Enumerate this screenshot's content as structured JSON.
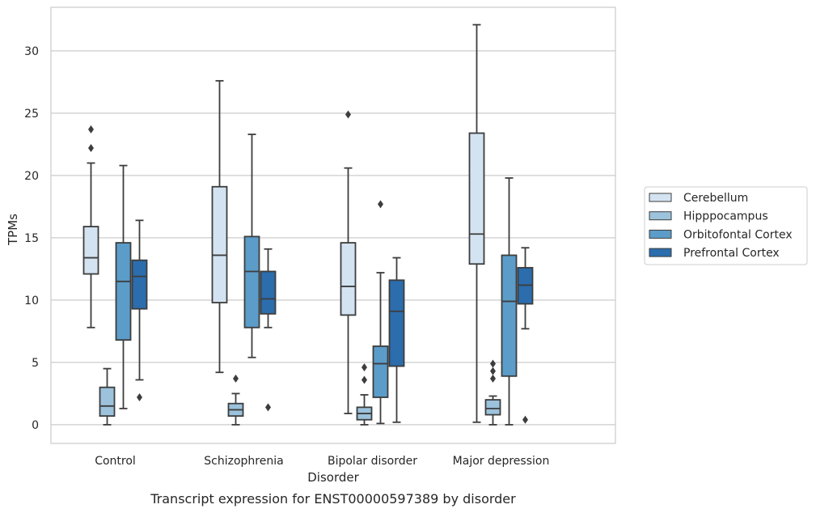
{
  "chart_data": {
    "type": "boxplot",
    "caption": "Transcript expression for ENST00000597389 by disorder",
    "xlabel": "Disorder",
    "ylabel": "TPMs",
    "ylim": [
      -1.5,
      33.5
    ],
    "yticks": [
      0,
      5,
      10,
      15,
      20,
      25,
      30
    ],
    "grid": "horizontal",
    "legend_position": "right",
    "categories": [
      "Control",
      "Schizophrenia",
      "Bipolar disorder",
      "Major depression"
    ],
    "series": [
      {
        "name": "Cerebellum",
        "color": "#d4e3f1",
        "boxes": [
          {
            "whislo": 7.8,
            "q1": 12.1,
            "med": 13.4,
            "q3": 15.9,
            "whishi": 21.0,
            "fliers": [
              22.2,
              23.7
            ]
          },
          {
            "whislo": 4.2,
            "q1": 9.8,
            "med": 13.6,
            "q3": 19.1,
            "whishi": 27.6,
            "fliers": []
          },
          {
            "whislo": 0.9,
            "q1": 8.8,
            "med": 11.1,
            "q3": 14.6,
            "whishi": 20.6,
            "fliers": [
              24.9
            ]
          },
          {
            "whislo": 0.2,
            "q1": 12.9,
            "med": 15.3,
            "q3": 23.4,
            "whishi": 32.1,
            "fliers": []
          }
        ]
      },
      {
        "name": "Hipppocampus",
        "color": "#9cc2dc",
        "boxes": [
          {
            "whislo": 0.0,
            "q1": 0.7,
            "med": 1.5,
            "q3": 3.0,
            "whishi": 4.5,
            "fliers": []
          },
          {
            "whislo": 0.0,
            "q1": 0.7,
            "med": 1.2,
            "q3": 1.7,
            "whishi": 2.5,
            "fliers": [
              3.7
            ]
          },
          {
            "whislo": 0.0,
            "q1": 0.4,
            "med": 0.9,
            "q3": 1.4,
            "whishi": 2.4,
            "fliers": [
              3.6,
              4.6
            ]
          },
          {
            "whislo": 0.0,
            "q1": 0.8,
            "med": 1.3,
            "q3": 2.0,
            "whishi": 2.3,
            "fliers": [
              3.7,
              4.3,
              4.9
            ]
          }
        ]
      },
      {
        "name": "Orbitofontal Cortex",
        "color": "#5b9cc9",
        "boxes": [
          {
            "whislo": 1.3,
            "q1": 6.8,
            "med": 11.5,
            "q3": 14.6,
            "whishi": 20.8,
            "fliers": []
          },
          {
            "whislo": 5.4,
            "q1": 7.8,
            "med": 12.3,
            "q3": 15.1,
            "whishi": 23.3,
            "fliers": []
          },
          {
            "whislo": 0.1,
            "q1": 2.2,
            "med": 4.9,
            "q3": 6.3,
            "whishi": 12.2,
            "fliers": [
              17.7
            ]
          },
          {
            "whislo": 0.0,
            "q1": 3.9,
            "med": 9.9,
            "q3": 13.6,
            "whishi": 19.8,
            "fliers": []
          }
        ]
      },
      {
        "name": "Prefrontal Cortex",
        "color": "#2b6dad",
        "boxes": [
          {
            "whislo": 3.6,
            "q1": 9.3,
            "med": 11.9,
            "q3": 13.2,
            "whishi": 16.4,
            "fliers": [
              2.2
            ]
          },
          {
            "whislo": 7.8,
            "q1": 8.9,
            "med": 10.1,
            "q3": 12.3,
            "whishi": 14.1,
            "fliers": [
              1.4
            ]
          },
          {
            "whislo": 0.2,
            "q1": 4.7,
            "med": 9.1,
            "q3": 11.6,
            "whishi": 13.4,
            "fliers": []
          },
          {
            "whislo": 7.7,
            "q1": 9.7,
            "med": 11.2,
            "q3": 12.6,
            "whishi": 14.2,
            "fliers": [
              0.4
            ]
          }
        ]
      }
    ]
  }
}
